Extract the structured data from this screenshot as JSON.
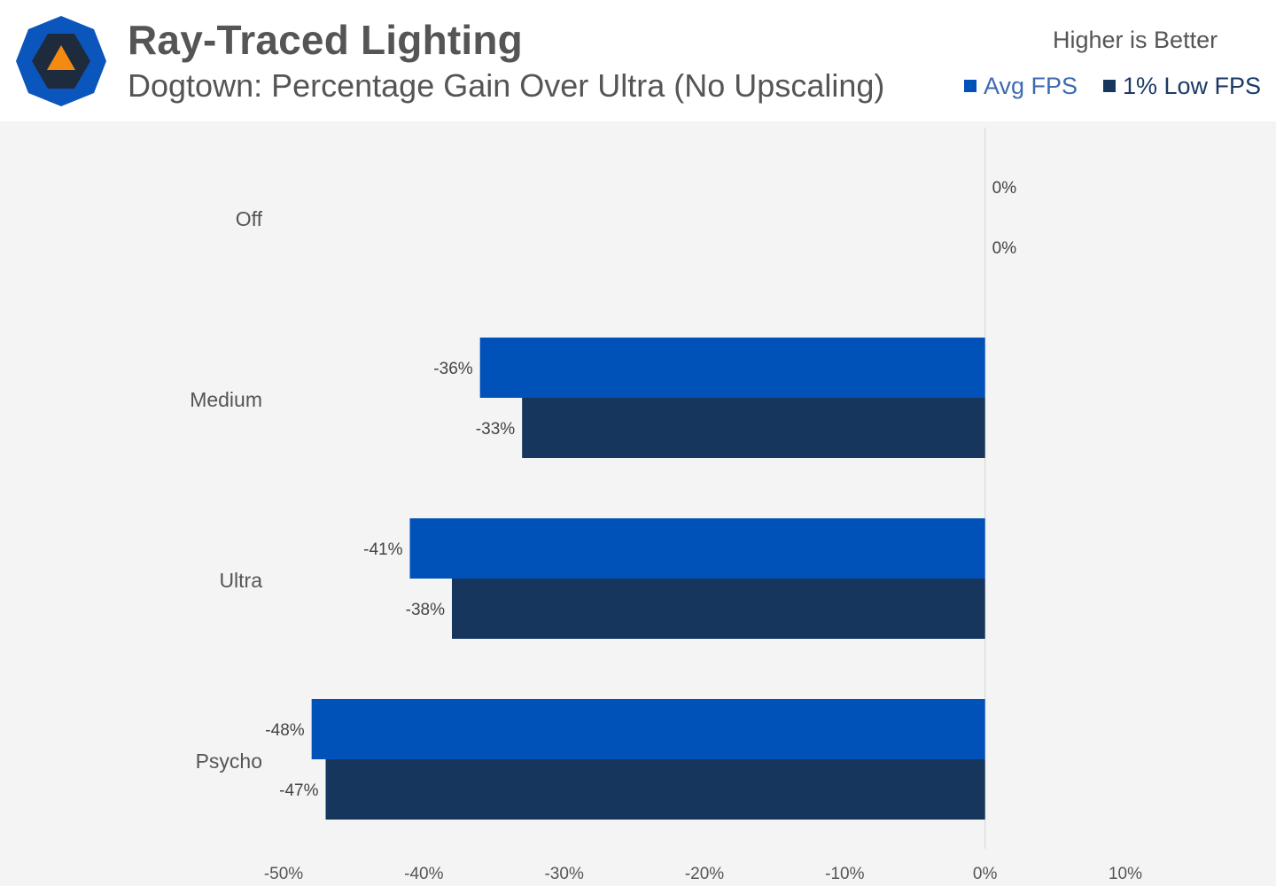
{
  "header": {
    "title": "Ray-Traced Lighting",
    "subtitle": "Dogtown: Percentage Gain Over Ultra (No Upscaling)",
    "note": "Higher is Better",
    "logo_icon": "hexagon-triangle-logo-icon"
  },
  "legend": [
    {
      "label": "Avg FPS",
      "color": "#0052b8"
    },
    {
      "label": "1% Low FPS",
      "color": "#16365e"
    }
  ],
  "chart_data": {
    "type": "bar",
    "orientation": "horizontal",
    "categories": [
      "Off",
      "Medium",
      "Ultra",
      "Psycho"
    ],
    "series": [
      {
        "name": "Avg FPS",
        "color": "#0052b8",
        "values": [
          0,
          -36,
          -41,
          -48
        ],
        "labels": [
          "0%",
          "-36%",
          "-41%",
          "-48%"
        ]
      },
      {
        "name": "1% Low FPS",
        "color": "#16365e",
        "values": [
          0,
          -33,
          -38,
          -47
        ],
        "labels": [
          "0%",
          "-33%",
          "-38%",
          "-47%"
        ]
      }
    ],
    "xlim": [
      -50,
      10
    ],
    "xticks": [
      -50,
      -40,
      -30,
      -20,
      -10,
      0,
      10
    ],
    "xtick_labels": [
      "-50%",
      "-40%",
      "-30%",
      "-20%",
      "-10%",
      "0%",
      "10%"
    ],
    "grid": false,
    "legend_position": "top-right"
  }
}
